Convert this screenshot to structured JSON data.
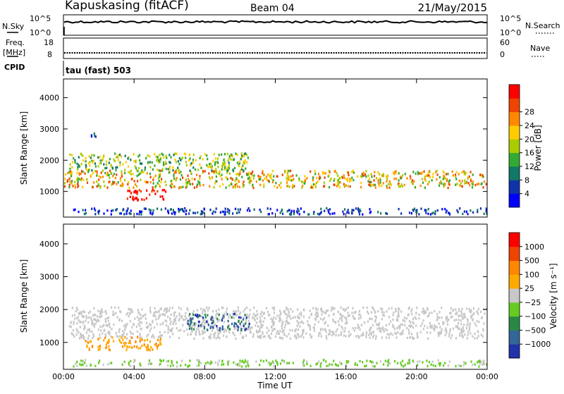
{
  "header": {
    "station": "Kapuskasing (fitACF)",
    "beam": "Beam 04",
    "date": "21/May/2015"
  },
  "noise_panel": {
    "left_label": "N.Sky",
    "right_label": "N.Search",
    "left_ticks": [
      "10^5",
      "10^0"
    ],
    "right_ticks": [
      "10^5",
      "10^0"
    ]
  },
  "freq_panel": {
    "left_label_1": "Freq.",
    "left_label_2": "[MHz]",
    "right_label": "Nave",
    "left_ticks": [
      "18",
      "8"
    ],
    "right_ticks": [
      "60",
      "0"
    ]
  },
  "cpid": {
    "label": "CPID",
    "value": "tau (fast) 503"
  },
  "time_axis": {
    "title": "Time UT",
    "ticks": [
      "00:00",
      "04:00",
      "08:00",
      "12:00",
      "16:00",
      "20:00",
      "00:00"
    ]
  },
  "colors": {
    "power": [
      "#0000ff",
      "#1133aa",
      "#117766",
      "#33aa33",
      "#aacc00",
      "#ffcc00",
      "#ff8800",
      "#ee4400",
      "#ff0000"
    ],
    "velocity": [
      "#2233aa",
      "#336699",
      "#2a8844",
      "#66cc22",
      "#c8c8c8",
      "#ffaa00",
      "#ff8800",
      "#ee4400",
      "#ff0000"
    ]
  },
  "chart_data": [
    {
      "type": "heatmap",
      "quantity": "Power",
      "ylabel": "Slant Range [km]",
      "xlabel": "Time UT",
      "ylim": [
        180,
        4600
      ],
      "xlim_hours": [
        0,
        24
      ],
      "ytick_labels": [
        "1000",
        "2000",
        "3000",
        "4000"
      ],
      "ytick_values": [
        1000,
        2000,
        3000,
        4000
      ],
      "colorbar_label": "Power [dB]",
      "colorbar_ticks": [
        "4",
        "8",
        "12",
        "16",
        "20",
        "24",
        "28"
      ],
      "scatter_regions": [
        {
          "t_start": 0.0,
          "t_end": 24.0,
          "r_min": 1150,
          "r_max": 1700,
          "level": "medium-high"
        },
        {
          "t_start": 0.3,
          "t_end": 10.5,
          "r_min": 1700,
          "r_max": 2250,
          "level": "medium"
        },
        {
          "t_start": 3.5,
          "t_end": 5.8,
          "r_min": 750,
          "r_max": 1100,
          "level": "high"
        },
        {
          "t_start": 0.5,
          "t_end": 24.0,
          "r_min": 300,
          "r_max": 500,
          "level": "low"
        },
        {
          "t_start": 1.5,
          "t_end": 2.0,
          "r_min": 2700,
          "r_max": 2900,
          "level": "low"
        }
      ]
    },
    {
      "type": "heatmap",
      "quantity": "Velocity",
      "ylabel": "Slant Range [km]",
      "xlabel": "Time UT",
      "ylim": [
        180,
        4600
      ],
      "xlim_hours": [
        0,
        24
      ],
      "ytick_labels": [
        "1000",
        "2000",
        "3000",
        "4000"
      ],
      "ytick_values": [
        1000,
        2000,
        3000,
        4000
      ],
      "colorbar_label": "Velocity [m s⁻¹]",
      "colorbar_ticks": [
        "1000",
        "500",
        "100",
        "25",
        "−25",
        "−100",
        "−500",
        "−1000"
      ],
      "scatter_regions": [
        {
          "t_start": 0.3,
          "t_end": 24.0,
          "r_min": 1150,
          "r_max": 2100,
          "level": "ground"
        },
        {
          "t_start": 1.2,
          "t_end": 5.5,
          "r_min": 800,
          "r_max": 1200,
          "level": "negative"
        },
        {
          "t_start": 7.0,
          "t_end": 10.5,
          "r_min": 1400,
          "r_max": 1900,
          "level": "positive"
        },
        {
          "t_start": 0.5,
          "t_end": 24.0,
          "r_min": 300,
          "r_max": 500,
          "level": "small-positive"
        }
      ]
    }
  ]
}
